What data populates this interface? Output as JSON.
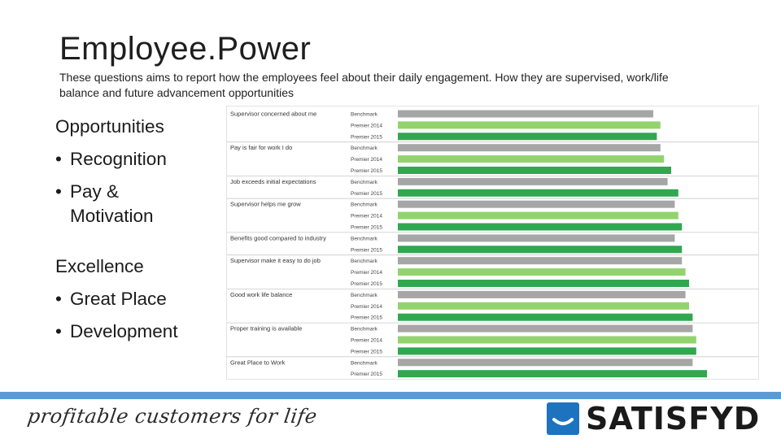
{
  "slide": {
    "title": "Employee.Power",
    "subtitle": "These questions aims to report how the employees feel about their daily engagement.  How they are supervised, work/life balance and future advancement opportunities"
  },
  "left_list": {
    "group1": {
      "heading": "Opportunities",
      "items": [
        "Recognition",
        "Pay & Motivation"
      ]
    },
    "group2": {
      "heading": "Excellence",
      "items": [
        "Great Place",
        "Development"
      ]
    },
    "bullet": "•"
  },
  "footer": {
    "tagline": "profitable customers for life",
    "logo_text": "SATISFYD",
    "bar_color": "#5b9bd5",
    "logo_color": "#1e73be"
  },
  "chart_data": {
    "type": "bar",
    "orientation": "horizontal",
    "xlim": [
      0,
      100
    ],
    "colors": {
      "Benchmark": "#a6a6a6",
      "Premier 2014": "#92d36e",
      "Premier 2015": "#2fa84f"
    },
    "groups": [
      {
        "label": "Supervisor concerned about me",
        "bars": [
          {
            "series": "Benchmark",
            "value": 85
          },
          {
            "series": "Premier 2014",
            "value": 87
          },
          {
            "series": "Premier 2015",
            "value": 86
          }
        ]
      },
      {
        "label": "Pay is fair for work I do",
        "bars": [
          {
            "series": "Benchmark",
            "value": 87
          },
          {
            "series": "Premier 2014",
            "value": 88
          },
          {
            "series": "Premier 2015",
            "value": 90
          }
        ]
      },
      {
        "label": "Job exceeds initial expectations",
        "bars": [
          {
            "series": "Benchmark",
            "value": 89
          },
          {
            "series": "Premier 2015",
            "value": 92
          }
        ]
      },
      {
        "label": "Supervisor helps me grow",
        "bars": [
          {
            "series": "Benchmark",
            "value": 91
          },
          {
            "series": "Premier 2014",
            "value": 92
          },
          {
            "series": "Premier 2015",
            "value": 93
          }
        ]
      },
      {
        "label": "Benefits good compared to industry",
        "bars": [
          {
            "series": "Benchmark",
            "value": 91
          },
          {
            "series": "Premier 2015",
            "value": 93
          }
        ]
      },
      {
        "label": "Supervisor make it easy to do job",
        "bars": [
          {
            "series": "Benchmark",
            "value": 93
          },
          {
            "series": "Premier 2014",
            "value": 94
          },
          {
            "series": "Premier 2015",
            "value": 95
          }
        ]
      },
      {
        "label": "Good work life balance",
        "bars": [
          {
            "series": "Benchmark",
            "value": 94
          },
          {
            "series": "Premier 2014",
            "value": 95
          },
          {
            "series": "Premier 2015",
            "value": 96
          }
        ]
      },
      {
        "label": "Proper training is available",
        "bars": [
          {
            "series": "Benchmark",
            "value": 96
          },
          {
            "series": "Premier 2014",
            "value": 97
          },
          {
            "series": "Premier 2015",
            "value": 97
          }
        ]
      },
      {
        "label": "Great Place to Work",
        "bars": [
          {
            "series": "Benchmark",
            "value": 96
          },
          {
            "series": "Premier 2015",
            "value": 100
          }
        ]
      }
    ]
  }
}
